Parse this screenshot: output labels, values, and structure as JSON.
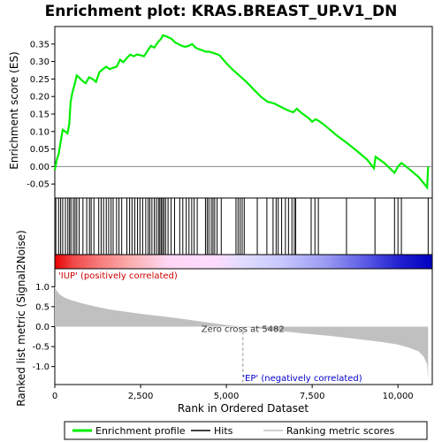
{
  "chart_data": {
    "type": "line",
    "title": "Enrichment plot: KRAS.BREAST_UP.V1_DN",
    "xlabel": "Rank in Ordered Dataset",
    "xlim": [
      0,
      11000
    ],
    "x_ticks": [
      0,
      2500,
      5000,
      7500,
      10000
    ],
    "x_tick_labels": [
      "0",
      "2,500",
      "5,000",
      "7,500",
      "10,000"
    ],
    "top_panel": {
      "ylabel": "Enrichment score (ES)",
      "ylim": [
        -0.09,
        0.4
      ],
      "y_ticks": [
        -0.05,
        0.0,
        0.05,
        0.1,
        0.15,
        0.2,
        0.25,
        0.3,
        0.35
      ],
      "y_tick_labels": [
        "-0.05",
        "0.00",
        "0.05",
        "0.10",
        "0.15",
        "0.20",
        "0.25",
        "0.30",
        "0.35"
      ],
      "series": [
        {
          "name": "Enrichment profile",
          "color": "#00ee00",
          "points": [
            [
              0,
              -0.01
            ],
            [
              60,
              0.02
            ],
            [
              110,
              0.035
            ],
            [
              170,
              0.07
            ],
            [
              230,
              0.105
            ],
            [
              300,
              0.1
            ],
            [
              370,
              0.095
            ],
            [
              420,
              0.12
            ],
            [
              460,
              0.185
            ],
            [
              520,
              0.215
            ],
            [
              580,
              0.235
            ],
            [
              640,
              0.26
            ],
            [
              700,
              0.255
            ],
            [
              800,
              0.245
            ],
            [
              900,
              0.238
            ],
            [
              1000,
              0.255
            ],
            [
              1100,
              0.25
            ],
            [
              1200,
              0.242
            ],
            [
              1300,
              0.27
            ],
            [
              1400,
              0.278
            ],
            [
              1500,
              0.285
            ],
            [
              1600,
              0.278
            ],
            [
              1700,
              0.282
            ],
            [
              1800,
              0.285
            ],
            [
              1900,
              0.305
            ],
            [
              2000,
              0.298
            ],
            [
              2100,
              0.31
            ],
            [
              2200,
              0.32
            ],
            [
              2300,
              0.315
            ],
            [
              2400,
              0.32
            ],
            [
              2500,
              0.318
            ],
            [
              2600,
              0.315
            ],
            [
              2700,
              0.33
            ],
            [
              2800,
              0.345
            ],
            [
              2900,
              0.34
            ],
            [
              3000,
              0.355
            ],
            [
              3100,
              0.365
            ],
            [
              3150,
              0.375
            ],
            [
              3250,
              0.372
            ],
            [
              3400,
              0.365
            ],
            [
              3500,
              0.355
            ],
            [
              3600,
              0.35
            ],
            [
              3700,
              0.345
            ],
            [
              3800,
              0.342
            ],
            [
              3900,
              0.345
            ],
            [
              4000,
              0.35
            ],
            [
              4100,
              0.34
            ],
            [
              4200,
              0.335
            ],
            [
              4300,
              0.332
            ],
            [
              4400,
              0.328
            ],
            [
              4500,
              0.328
            ],
            [
              4600,
              0.325
            ],
            [
              4700,
              0.322
            ],
            [
              4800,
              0.318
            ],
            [
              5000,
              0.295
            ],
            [
              5200,
              0.275
            ],
            [
              5400,
              0.258
            ],
            [
              5600,
              0.24
            ],
            [
              5800,
              0.22
            ],
            [
              6000,
              0.2
            ],
            [
              6200,
              0.185
            ],
            [
              6400,
              0.18
            ],
            [
              6600,
              0.17
            ],
            [
              6800,
              0.16
            ],
            [
              6950,
              0.155
            ],
            [
              7050,
              0.165
            ],
            [
              7200,
              0.152
            ],
            [
              7400,
              0.138
            ],
            [
              7500,
              0.128
            ],
            [
              7600,
              0.135
            ],
            [
              7700,
              0.13
            ],
            [
              7900,
              0.115
            ],
            [
              8200,
              0.09
            ],
            [
              8500,
              0.068
            ],
            [
              8800,
              0.045
            ],
            [
              9100,
              0.02
            ],
            [
              9300,
              -0.005
            ],
            [
              9350,
              0.028
            ],
            [
              9600,
              0.01
            ],
            [
              9900,
              -0.018
            ],
            [
              10000,
              0.0
            ],
            [
              10100,
              0.01
            ],
            [
              10300,
              -0.005
            ],
            [
              10600,
              -0.03
            ],
            [
              10850,
              -0.06
            ],
            [
              10880,
              0.0
            ]
          ]
        }
      ]
    },
    "hits": [
      30,
      110,
      170,
      230,
      310,
      380,
      430,
      470,
      540,
      590,
      640,
      710,
      820,
      930,
      1010,
      1060,
      1140,
      1280,
      1350,
      1420,
      1500,
      1570,
      1640,
      1700,
      1800,
      1870,
      1950,
      2100,
      2180,
      2250,
      2330,
      2410,
      2480,
      2560,
      2650,
      2720,
      2770,
      2830,
      2900,
      2960,
      3020,
      3060,
      3100,
      3140,
      3180,
      3230,
      3300,
      3390,
      3490,
      3640,
      3730,
      3830,
      3910,
      3990,
      4060,
      4150,
      4390,
      4440,
      4490,
      4560,
      4610,
      4660,
      4730,
      4850,
      5280,
      5340,
      5400,
      5460,
      5520,
      5900,
      6180,
      6360,
      6450,
      6510,
      6610,
      6720,
      6810,
      6910,
      6980,
      7020,
      7470,
      7580,
      7680,
      8500,
      9330,
      9900,
      10000,
      10100,
      10880
    ],
    "colorbar": {
      "colors": [
        "#e80000",
        "#f14a4a",
        "#f77d7d",
        "#fbaeae",
        "#ffd6f4",
        "#ffdcff",
        "#e0dcff",
        "#c8c8ff",
        "#9a9af2",
        "#5c5ce6",
        "#2222d0",
        "#0000c0"
      ],
      "stops_fraction": [
        0.0,
        0.05,
        0.12,
        0.2,
        0.3,
        0.42,
        0.5,
        0.6,
        0.72,
        0.82,
        0.91,
        1.0
      ]
    },
    "bottom_panel": {
      "ylabel": "Ranked list metric (Signal2Noise)",
      "ylim": [
        -1.45,
        1.45
      ],
      "y_ticks": [
        -1.0,
        -0.5,
        0.0,
        0.5,
        1.0
      ],
      "y_tick_labels": [
        "-1.0",
        "-0.5",
        "0.0",
        "0.5",
        "1.0"
      ],
      "series": [
        {
          "name": "Ranking metric scores",
          "color": "#c0c0c0",
          "points": [
            [
              0,
              1.0
            ],
            [
              50,
              0.9
            ],
            [
              150,
              0.8
            ],
            [
              300,
              0.72
            ],
            [
              500,
              0.66
            ],
            [
              800,
              0.58
            ],
            [
              1200,
              0.5
            ],
            [
              1600,
              0.43
            ],
            [
              2000,
              0.38
            ],
            [
              2500,
              0.32
            ],
            [
              3000,
              0.27
            ],
            [
              3500,
              0.22
            ],
            [
              4000,
              0.16
            ],
            [
              4500,
              0.1
            ],
            [
              5000,
              0.04
            ],
            [
              5482,
              0.0
            ],
            [
              6000,
              -0.05
            ],
            [
              6500,
              -0.1
            ],
            [
              7000,
              -0.15
            ],
            [
              7500,
              -0.19
            ],
            [
              8000,
              -0.23
            ],
            [
              8500,
              -0.28
            ],
            [
              9000,
              -0.33
            ],
            [
              9500,
              -0.38
            ],
            [
              10000,
              -0.45
            ],
            [
              10300,
              -0.52
            ],
            [
              10600,
              -0.62
            ],
            [
              10750,
              -0.75
            ],
            [
              10850,
              -0.95
            ],
            [
              10880,
              -1.35
            ]
          ]
        }
      ],
      "zero_cross_label": "Zero cross at 5482",
      "zero_cross_rank": 5482,
      "pos_label": "'IUP' (positively correlated)",
      "neg_label": "'EP' (negatively correlated)"
    },
    "legend": {
      "placement": "bottom",
      "entries": [
        {
          "label": "Enrichment profile",
          "color": "#00ee00"
        },
        {
          "label": "Hits",
          "color": "#000000"
        },
        {
          "label": "Ranking metric scores",
          "color": "#c0c0c0"
        }
      ]
    }
  }
}
